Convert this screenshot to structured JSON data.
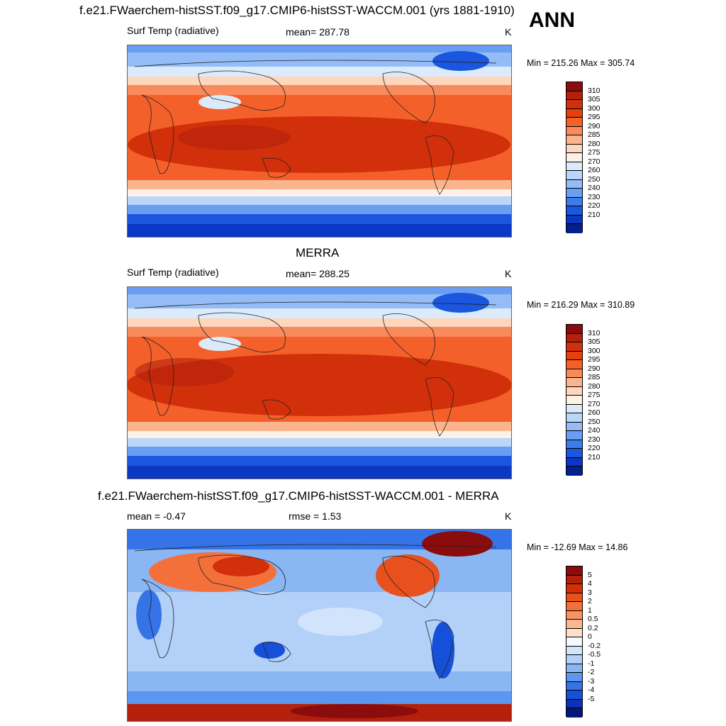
{
  "season": "ANN",
  "panels": [
    {
      "title": "f.e21.FWaerchem-histSST.f09_g17.CMIP6-histSST-WACCM.001 (yrs 1881-1910)",
      "left_label": "Surf Temp (radiative)",
      "center_label": "mean= 287.78",
      "unit": "K",
      "minmax": "Min = 215.26 Max = 305.74",
      "colorbar": {
        "labels": [
          "310",
          "305",
          "300",
          "295",
          "290",
          "285",
          "280",
          "275",
          "270",
          "260",
          "250",
          "240",
          "230",
          "220",
          "210"
        ],
        "colors": [
          "#8a0c0c",
          "#b4200c",
          "#d2300a",
          "#e6400c",
          "#f4602a",
          "#f88a5c",
          "#fab48e",
          "#fdd6bc",
          "#fdf0e4",
          "#dcebfb",
          "#bad6f8",
          "#94bcf6",
          "#6a9ef2",
          "#3d7cea",
          "#1a56de",
          "#0a38c4",
          "#04208c"
        ]
      }
    },
    {
      "title": "MERRA",
      "left_label": "Surf Temp (radiative)",
      "center_label": "mean= 288.25",
      "unit": "K",
      "minmax": "Min = 216.29 Max = 310.89",
      "colorbar": {
        "labels": [
          "310",
          "305",
          "300",
          "295",
          "290",
          "285",
          "280",
          "275",
          "270",
          "260",
          "250",
          "240",
          "230",
          "220",
          "210"
        ],
        "colors": [
          "#8a0c0c",
          "#b4200c",
          "#d2300a",
          "#e6400c",
          "#f4602a",
          "#f88a5c",
          "#fab48e",
          "#fdd6bc",
          "#fdf0e4",
          "#dcebfb",
          "#bad6f8",
          "#94bcf6",
          "#6a9ef2",
          "#3d7cea",
          "#1a56de",
          "#0a38c4",
          "#04208c"
        ]
      }
    },
    {
      "title": "f.e21.FWaerchem-histSST.f09_g17.CMIP6-histSST-WACCM.001 - MERRA",
      "left_label": "mean =  -0.47",
      "center_label": "rmse =   1.53",
      "unit": "K",
      "minmax": "Min = -12.69 Max =  14.86",
      "colorbar": {
        "labels": [
          "5",
          "4",
          "3",
          "2",
          "1",
          "0.5",
          "0.2",
          "0",
          "-0.2",
          "-0.5",
          "-1",
          "-2",
          "-3",
          "-4",
          "-5"
        ],
        "colors": [
          "#8a0c0c",
          "#b4200c",
          "#d2300a",
          "#e8501e",
          "#f4703a",
          "#f89464",
          "#fab892",
          "#fde0cc",
          "#f4f8ff",
          "#d2e4fb",
          "#b2d0f8",
          "#8ab6f4",
          "#5c96ee",
          "#3474e6",
          "#1650d8",
          "#0a32b8",
          "#04187c"
        ]
      }
    }
  ]
}
